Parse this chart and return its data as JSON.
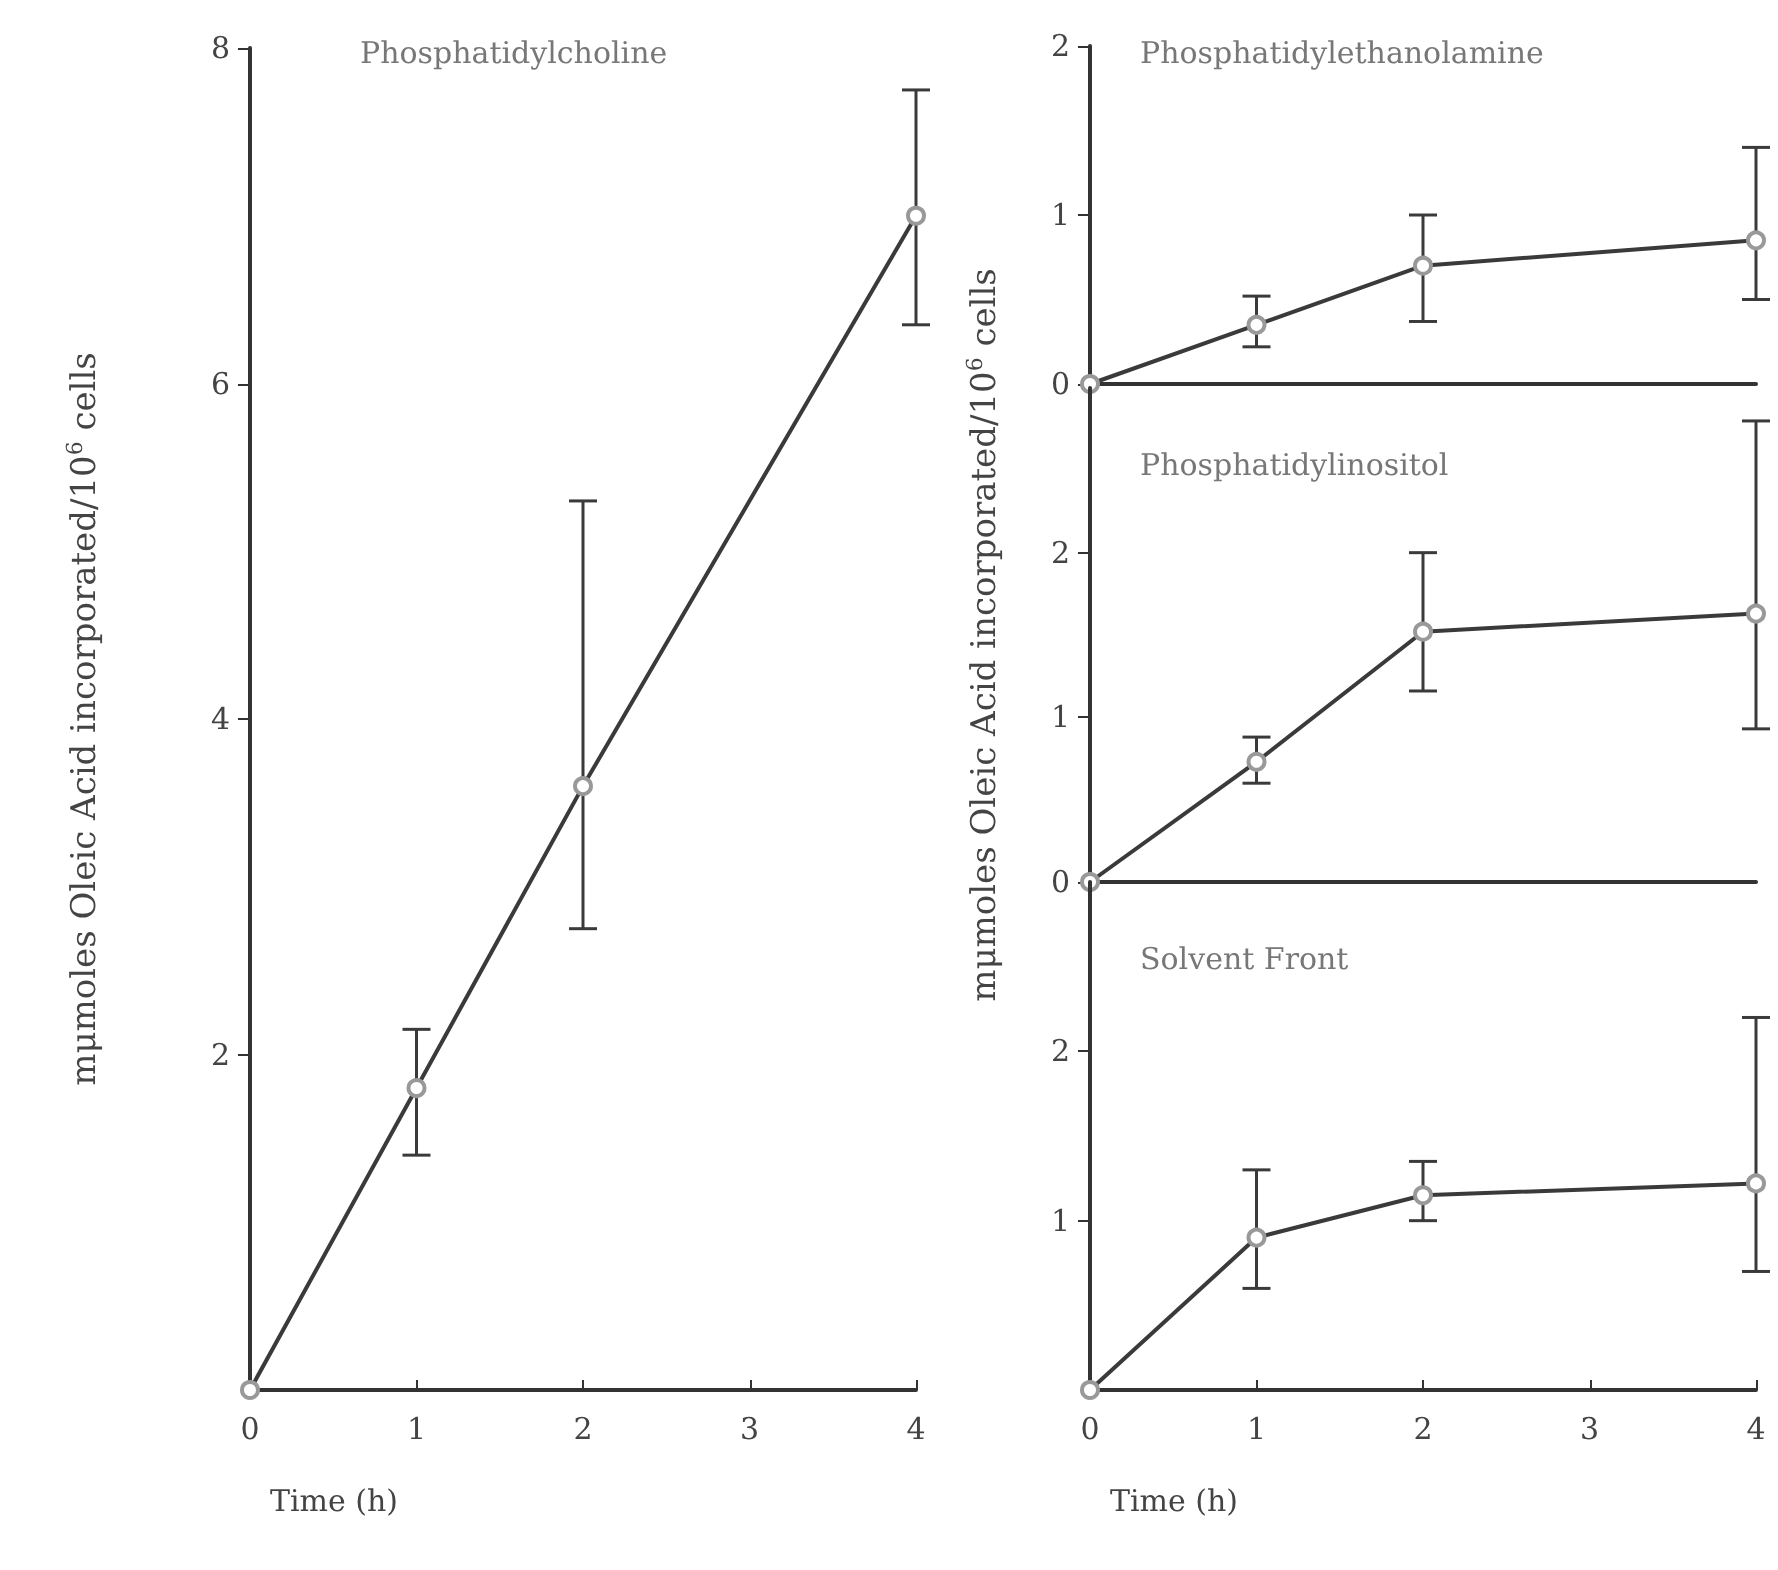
{
  "chart_data": [
    {
      "type": "line",
      "title": "Phosphatidylcholine",
      "xlabel": "Time (h)",
      "ylabel": "mμmoles Oleic Acid incorporated/10$^{6}$ cells",
      "x": [
        0,
        1,
        2,
        4
      ],
      "xlim": [
        0,
        4
      ],
      "xticks": [
        0,
        1,
        2,
        3,
        4
      ],
      "ylim": [
        0,
        8
      ],
      "yticks": [
        2,
        4,
        6,
        8
      ],
      "grid": false,
      "marker": "circle",
      "line_style": "solid",
      "series": [
        {
          "color": "#3a3a3a",
          "values": [
            0,
            1.8,
            3.6,
            7.0
          ],
          "errors": [
            null,
            [
              1.4,
              2.15
            ],
            [
              2.75,
              5.3
            ],
            [
              6.35,
              7.75
            ]
          ]
        }
      ]
    },
    {
      "type": "line",
      "title": "Phosphatidylethanolamine",
      "x": [
        0,
        1,
        2,
        4
      ],
      "xlim": [
        0,
        4
      ],
      "ylim": [
        0,
        2
      ],
      "yticks": [
        0,
        1,
        2
      ],
      "tick_labels": "y",
      "grid": false,
      "marker": "circle",
      "line_style": "solid",
      "series": [
        {
          "color": "#3a3a3a",
          "values": [
            0,
            0.35,
            0.7,
            0.85
          ],
          "errors": [
            null,
            [
              0.22,
              0.52
            ],
            [
              0.37,
              1.0
            ],
            [
              0.5,
              1.4
            ]
          ]
        }
      ]
    },
    {
      "type": "line",
      "title": "Phosphatidylinositol",
      "ylabel": "mμmoles Oleic Acid incorporated/10$^{6}$ cells",
      "x": [
        0,
        1,
        2,
        4
      ],
      "xlim": [
        0,
        4
      ],
      "ylim": [
        0,
        3
      ],
      "yticks": [
        0,
        1,
        2
      ],
      "tick_labels": "y",
      "grid": false,
      "marker": "circle",
      "line_style": "solid",
      "series": [
        {
          "color": "#3a3a3a",
          "values": [
            0,
            0.73,
            1.52,
            1.63
          ],
          "errors": [
            null,
            [
              0.6,
              0.88
            ],
            [
              1.16,
              2.0
            ],
            [
              0.93,
              2.8
            ]
          ]
        }
      ]
    },
    {
      "type": "line",
      "title": "Solvent Front",
      "xlabel": "Time (h)",
      "x": [
        0,
        1,
        2,
        4
      ],
      "xlim": [
        0,
        4
      ],
      "xticks": [
        0,
        1,
        2,
        3,
        4
      ],
      "ylim": [
        0,
        3
      ],
      "yticks": [
        1,
        2
      ],
      "grid": false,
      "marker": "circle",
      "line_style": "solid",
      "series": [
        {
          "color": "#3a3a3a",
          "values": [
            0,
            0.9,
            1.15,
            1.22
          ],
          "errors": [
            null,
            [
              0.6,
              1.3
            ],
            [
              1.0,
              1.35
            ],
            [
              0.7,
              2.2
            ]
          ]
        }
      ]
    }
  ]
}
